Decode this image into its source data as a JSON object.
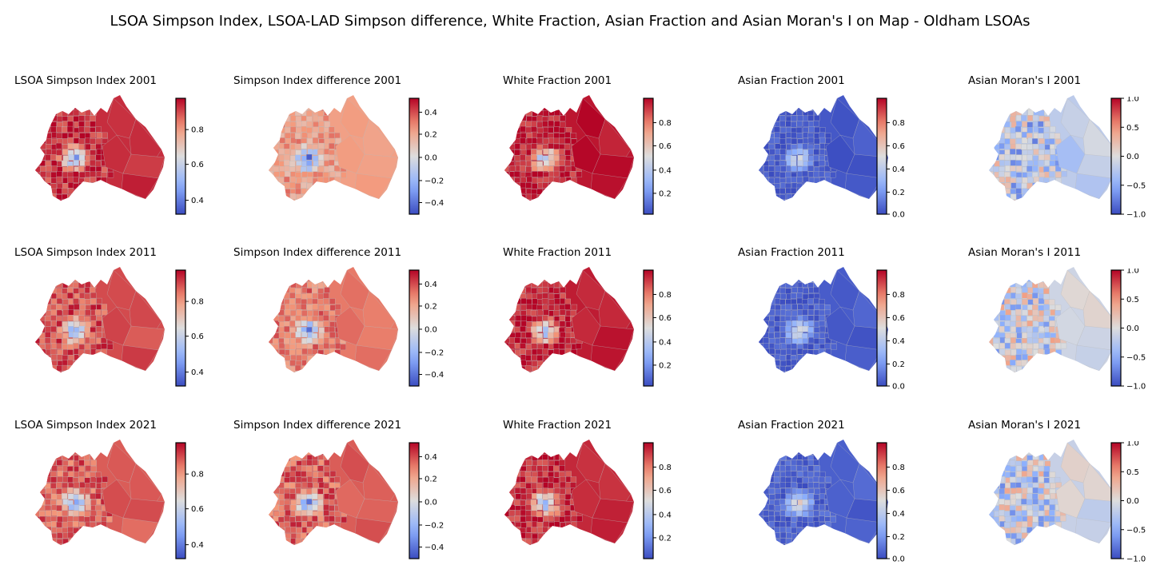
{
  "title": "LSOA Simpson Index, LSOA-LAD Simpson difference, White Fraction, Asian Fraction and Asian Moran's I on Map - Oldham LSOAs",
  "columns": [
    {
      "key": "simpson",
      "cmap_pos": 0.82,
      "ticks": [
        "0.4",
        "0.6",
        "0.8"
      ],
      "tick_pos": [
        0.88,
        0.57,
        0.27
      ]
    },
    {
      "key": "diff",
      "cmap_pos": 0.72,
      "ticks": [
        "0.4",
        "0.2",
        "0.0",
        "−0.2",
        "−0.4"
      ],
      "tick_pos": [
        0.12,
        0.31,
        0.51,
        0.71,
        0.9
      ]
    },
    {
      "key": "white",
      "cmap_pos": 0.95,
      "ticks": [
        "0.8",
        "0.6",
        "0.4",
        "0.2"
      ],
      "tick_pos": [
        0.21,
        0.41,
        0.62,
        0.82
      ]
    },
    {
      "key": "asian",
      "cmap_pos": 0.04,
      "ticks": [
        "0.8",
        "0.6",
        "0.4",
        "0.2",
        "0.0"
      ],
      "tick_pos": [
        0.21,
        0.41,
        0.61,
        0.81,
        1.0
      ]
    },
    {
      "key": "moran",
      "cmap_pos": 0.42,
      "ticks": [
        "1.0",
        "0.5",
        "0.0",
        "−0.5",
        "−1.0"
      ],
      "tick_pos": [
        0.0,
        0.25,
        0.5,
        0.75,
        1.0
      ]
    }
  ],
  "rows": [
    {
      "year": "2001",
      "titles": [
        "LSOA Simpson Index 2001",
        "Simpson Index difference 2001",
        "White Fraction 2001",
        "Asian Fraction 2001",
        "Asian Moran's I 2001"
      ],
      "main_pos": [
        0.93,
        0.72,
        0.97,
        0.03,
        0.4
      ]
    },
    {
      "year": "2011",
      "titles": [
        "LSOA Simpson Index 2011",
        "Simpson Index difference 2011",
        "White Fraction 2011",
        "Asian Fraction 2011",
        "Asian Moran's I 2011"
      ],
      "main_pos": [
        0.88,
        0.8,
        0.96,
        0.04,
        0.45
      ]
    },
    {
      "year": "2021",
      "titles": [
        "LSOA Simpson Index 2021",
        "Simpson Index difference 2021",
        "White Fraction 2021",
        "Asian Fraction 2021",
        "Asian Moran's I 2021"
      ],
      "main_pos": [
        0.85,
        0.85,
        0.94,
        0.05,
        0.43
      ]
    }
  ]
}
